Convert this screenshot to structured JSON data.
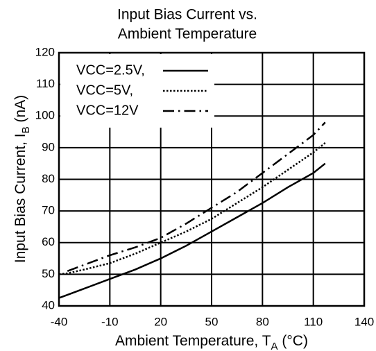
{
  "chart_data": {
    "type": "line",
    "title": [
      "Input Bias Current vs.",
      "Ambient Temperature"
    ],
    "xlabel": [
      "Ambient Temperature, T",
      "A",
      " (°C)"
    ],
    "ylabel": [
      "Input Bias Current, I",
      "B",
      " (nA)"
    ],
    "x": [
      -40,
      -35,
      -25,
      -10,
      5,
      20,
      35,
      50,
      65,
      80,
      95,
      110,
      117
    ],
    "series": [
      {
        "name": "VCC=2.5V,",
        "color": "#000000",
        "style": "solid",
        "values": [
          42.5,
          43.5,
          45.5,
          48.5,
          51.5,
          55,
          59,
          63.5,
          68,
          72.5,
          77.5,
          82,
          85
        ]
      },
      {
        "name": "VCC=5V,",
        "color": "#000000",
        "style": "dotted",
        "values": [
          50,
          50.3,
          51.5,
          53.5,
          56.5,
          60,
          63.5,
          67.5,
          72.5,
          77.5,
          83,
          88.5,
          91.5
        ]
      },
      {
        "name": "VCC=12V",
        "color": "#000000",
        "style": "dashdot",
        "values": [
          null,
          51,
          53,
          56,
          58.5,
          61.5,
          66,
          71,
          76,
          82,
          88,
          94,
          98
        ]
      }
    ],
    "xlim": [
      -40,
      140
    ],
    "xticks": [
      -40,
      -10,
      20,
      50,
      80,
      110,
      140
    ],
    "ylim": [
      40,
      120
    ],
    "yticks": [
      40,
      50,
      60,
      70,
      80,
      90,
      100,
      110,
      120
    ],
    "grid": true,
    "legend": "upper left"
  }
}
